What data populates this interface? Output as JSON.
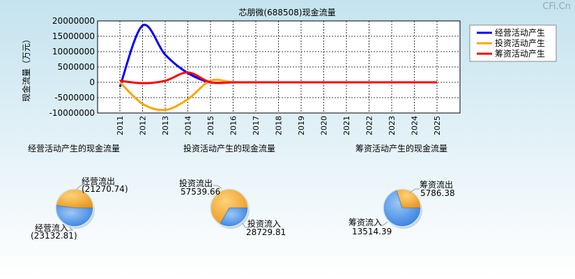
{
  "watermark": "CFi.Cn",
  "chart_data": [
    {
      "type": "line",
      "title": "芯朋微(688508)现金流量",
      "ylabel": "现金流量（万元）",
      "xlabel": "",
      "x": [
        "2011",
        "2012",
        "2013",
        "2014",
        "2015",
        "2016",
        "2017",
        "2018",
        "2019",
        "2020",
        "2021",
        "2022",
        "2023",
        "2024",
        "2025"
      ],
      "ylim": [
        -10000000,
        20000000
      ],
      "yticks": [
        "20000000",
        "15000000",
        "10000000",
        "5000000",
        "0",
        "-5000000",
        "-10000000"
      ],
      "grid": true,
      "legend_position": "top-right",
      "series": [
        {
          "name": "经营活动产生",
          "color": "#0000ff",
          "values": [
            -1500000,
            18500000,
            9000000,
            3000000,
            0,
            0,
            0,
            0,
            0,
            0,
            0,
            0,
            0,
            0,
            0
          ]
        },
        {
          "name": "投资活动产生",
          "color": "#ffa500",
          "values": [
            0,
            -7000000,
            -9000000,
            -5500000,
            500000,
            0,
            0,
            0,
            0,
            0,
            0,
            0,
            0,
            0,
            0
          ]
        },
        {
          "name": "筹资活动产生",
          "color": "#ff0000",
          "values": [
            500000,
            -300000,
            500000,
            3200000,
            0,
            0,
            0,
            0,
            0,
            0,
            0,
            0,
            0,
            0,
            0
          ]
        }
      ]
    },
    {
      "type": "pie",
      "title": "经营活动产生的现金流量",
      "slices": [
        {
          "label": "经营流出",
          "value": "(21270.74)",
          "amount": 21270.74,
          "color": "#f5a623"
        },
        {
          "label": "经营流入",
          "value": "(23132.81)",
          "amount": 23132.81,
          "color": "#4a90e2"
        }
      ]
    },
    {
      "type": "pie",
      "title": "投资活动产生的现金流量",
      "slices": [
        {
          "label": "投资流出",
          "value": "57539.66",
          "amount": 57539.66,
          "color": "#f5a623"
        },
        {
          "label": "投资流入",
          "value": "28729.81",
          "amount": 28729.81,
          "color": "#4a90e2"
        }
      ]
    },
    {
      "type": "pie",
      "title": "筹资活动产生的现金流量",
      "slices": [
        {
          "label": "筹资流出",
          "value": "5786.38",
          "amount": 5786.38,
          "color": "#f5a623"
        },
        {
          "label": "筹资流入",
          "value": "13514.39",
          "amount": 13514.39,
          "color": "#4a90e2"
        }
      ]
    }
  ]
}
